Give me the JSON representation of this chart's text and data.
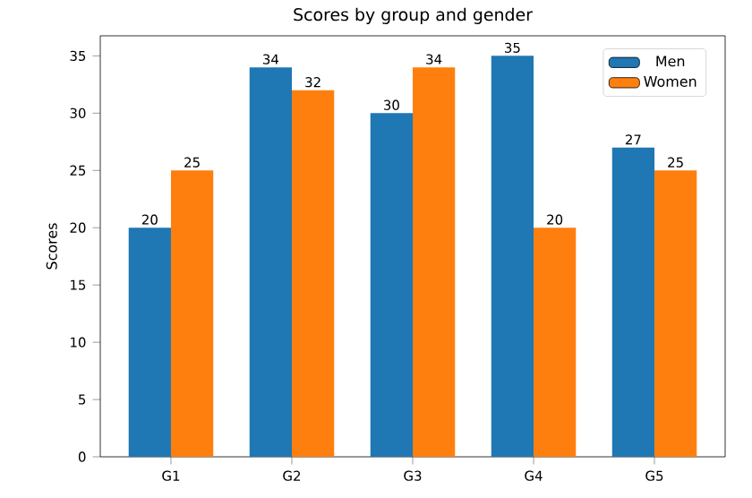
{
  "chart_data": {
    "type": "bar",
    "title": "Scores by group and gender",
    "ylabel": "Scores",
    "categories": [
      "G1",
      "G2",
      "G3",
      "G4",
      "G5"
    ],
    "series": [
      {
        "name": "Men",
        "color": "#1f77b4",
        "values": [
          20,
          34,
          30,
          35,
          27
        ]
      },
      {
        "name": "Women",
        "color": "#ff7f0e",
        "values": [
          25,
          32,
          34,
          20,
          25
        ]
      }
    ],
    "ylim": [
      0,
      36.75
    ],
    "yticks": [
      0,
      5,
      10,
      15,
      20,
      25,
      30,
      35
    ],
    "data_labels": true,
    "legend": "top right",
    "grid": false
  }
}
